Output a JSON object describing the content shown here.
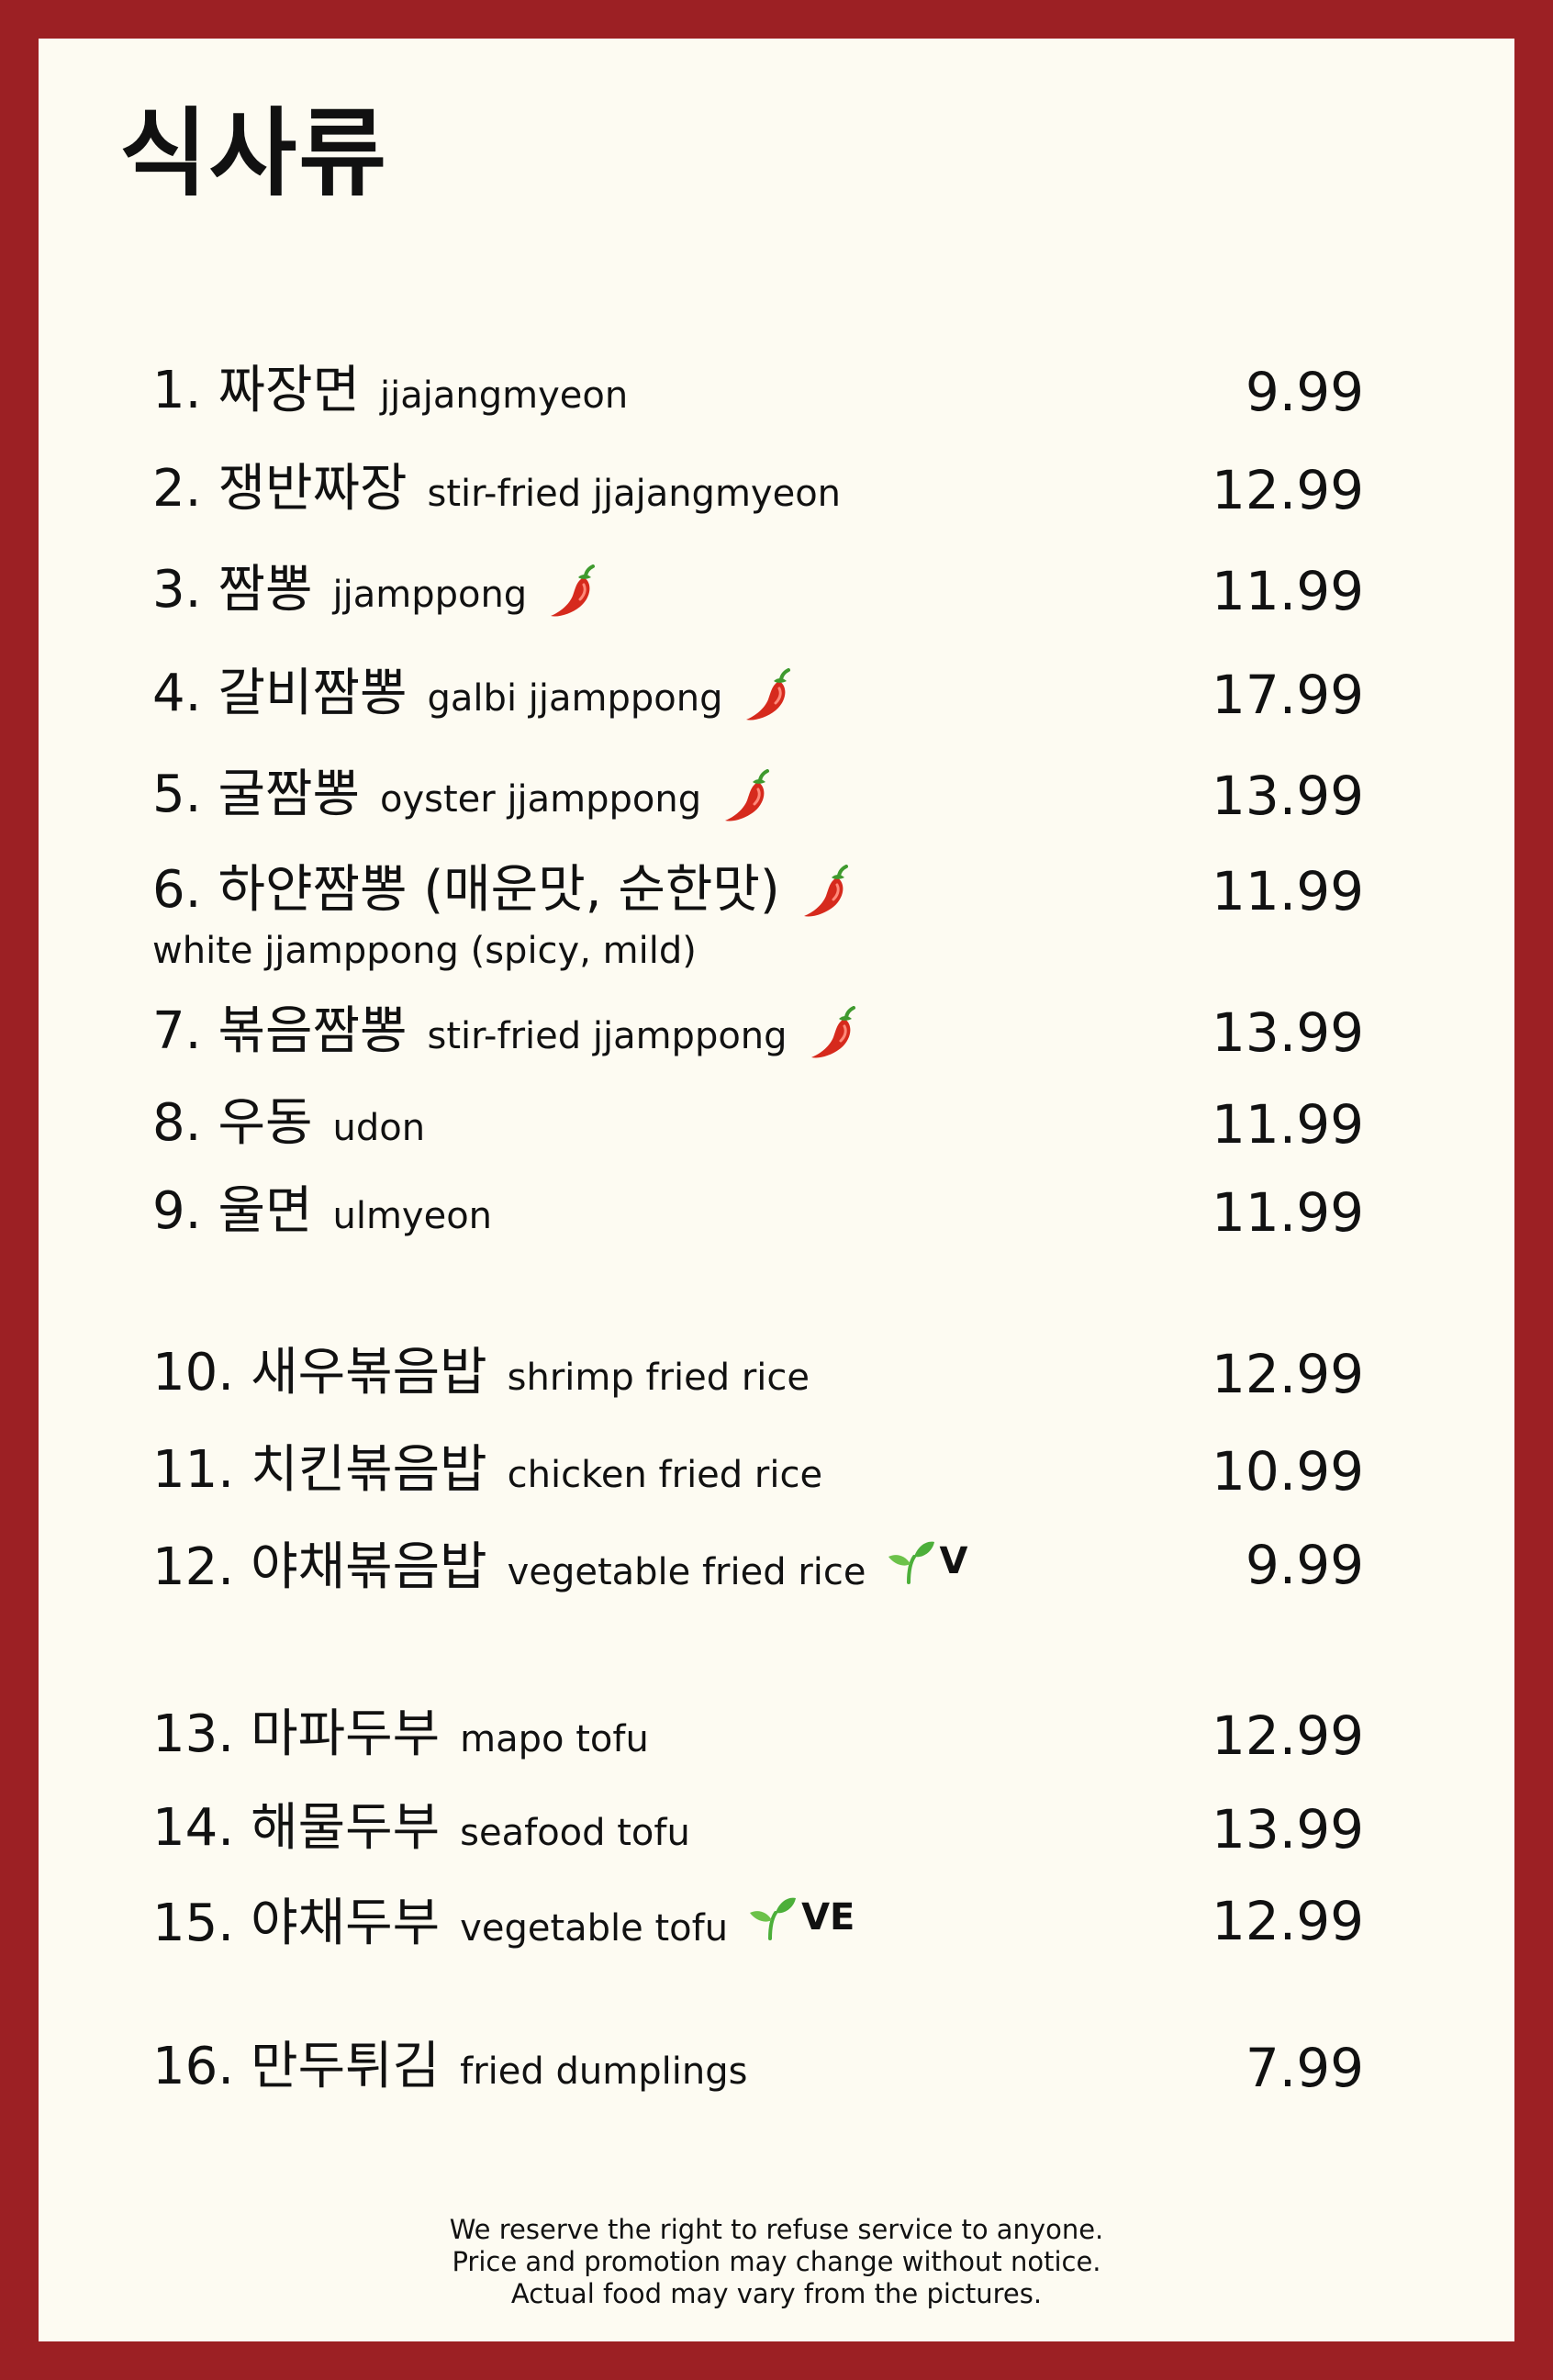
{
  "title": "식사류",
  "colors": {
    "border": "#9c2024",
    "background": "#fdfbf2",
    "text": "#111111",
    "pepper": "#d62a1d",
    "leaf": "#4caf3a"
  },
  "items": [
    {
      "num": "1.",
      "ko": "짜장면",
      "en": "jjajangmyeon",
      "price": "9.99",
      "spicy": false,
      "tag": ""
    },
    {
      "num": "2.",
      "ko": "쟁반짜장",
      "en": "stir-fried jjajangmyeon",
      "price": "12.99",
      "spicy": false,
      "tag": ""
    },
    {
      "num": "3.",
      "ko": "짬뽕",
      "en": "jjamppong",
      "price": "11.99",
      "spicy": true,
      "tag": ""
    },
    {
      "num": "4.",
      "ko": "갈비짬뽕",
      "en": "galbi jjamppong",
      "price": "17.99",
      "spicy": true,
      "tag": ""
    },
    {
      "num": "5.",
      "ko": "굴짬뽕",
      "en": "oyster jjamppong",
      "price": "13.99",
      "spicy": true,
      "tag": ""
    },
    {
      "num": "6.",
      "ko": "하얀짬뽕 (매운맛, 순한맛)",
      "en": "",
      "sub": "white jjamppong (spicy, mild)",
      "price": "11.99",
      "spicy": true,
      "tag": ""
    },
    {
      "num": "7.",
      "ko": "볶음짬뽕",
      "en": "stir-fried jjamppong",
      "price": "13.99",
      "spicy": true,
      "tag": ""
    },
    {
      "num": "8.",
      "ko": "우동",
      "en": "udon",
      "price": "11.99",
      "spicy": false,
      "tag": ""
    },
    {
      "num": "9.",
      "ko": "울면",
      "en": "ulmyeon",
      "price": "11.99",
      "spicy": false,
      "tag": ""
    },
    {
      "num": "10.",
      "ko": "새우볶음밥",
      "en": "shrimp fried rice",
      "price": "12.99",
      "spicy": false,
      "tag": ""
    },
    {
      "num": "11.",
      "ko": "치킨볶음밥",
      "en": "chicken fried rice",
      "price": "10.99",
      "spicy": false,
      "tag": ""
    },
    {
      "num": "12.",
      "ko": "야채볶음밥",
      "en": "vegetable fried rice",
      "price": "9.99",
      "spicy": false,
      "tag": "V"
    },
    {
      "num": "13.",
      "ko": "마파두부",
      "en": "mapo tofu",
      "price": "12.99",
      "spicy": false,
      "tag": ""
    },
    {
      "num": "14.",
      "ko": "해물두부",
      "en": "seafood tofu",
      "price": "13.99",
      "spicy": false,
      "tag": ""
    },
    {
      "num": "15.",
      "ko": "야채두부",
      "en": "vegetable tofu",
      "price": "12.99",
      "spicy": false,
      "tag": "VE"
    },
    {
      "num": "16.",
      "ko": "만두튀김",
      "en": "fried dumplings",
      "price": "7.99",
      "spicy": false,
      "tag": ""
    }
  ],
  "footer": [
    "We reserve the right to refuse service to anyone.",
    "Price and promotion may change without notice.",
    "Actual food may vary from the pictures."
  ]
}
